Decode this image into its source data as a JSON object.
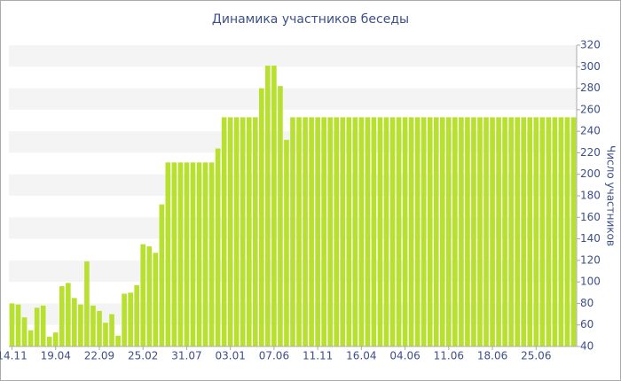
{
  "chart_data": {
    "type": "bar",
    "title": "Динамика участников беседы",
    "y_label": "Число участников",
    "categories": [
      "14.11",
      null,
      null,
      null,
      null,
      null,
      null,
      "19.04",
      null,
      null,
      null,
      null,
      null,
      null,
      "22.09",
      null,
      null,
      null,
      null,
      null,
      null,
      "25.02",
      null,
      null,
      null,
      null,
      null,
      null,
      "31.07",
      null,
      null,
      null,
      null,
      null,
      null,
      "03.01",
      null,
      null,
      null,
      null,
      null,
      null,
      "07.06",
      null,
      null,
      null,
      null,
      null,
      null,
      "11.11",
      null,
      null,
      null,
      null,
      null,
      null,
      "16.04",
      null,
      null,
      null,
      null,
      null,
      null,
      "04.06",
      null,
      null,
      null,
      null,
      null,
      null,
      "11.06",
      null,
      null,
      null,
      null,
      null,
      null,
      "18.06",
      null,
      null,
      null,
      null,
      null,
      null,
      "25.06",
      null,
      null,
      null,
      null,
      null,
      null
    ],
    "values": [
      80,
      79,
      67,
      55,
      76,
      78,
      49,
      53,
      96,
      99,
      85,
      79,
      119,
      78,
      73,
      62,
      70,
      50,
      89,
      90,
      97,
      135,
      133,
      127,
      172,
      211,
      211,
      211,
      211,
      211,
      211,
      211,
      211,
      224,
      253,
      253,
      253,
      253,
      253,
      253,
      280,
      301,
      301,
      282,
      232,
      253,
      253,
      253,
      253,
      253,
      253,
      253,
      253,
      253,
      253,
      253,
      253,
      253,
      253,
      253,
      253,
      253,
      253,
      253,
      253,
      253,
      253,
      253,
      253,
      253,
      253,
      253,
      253,
      253,
      253,
      253,
      253,
      253,
      253,
      253,
      253,
      253,
      253,
      253,
      253,
      253,
      253,
      253,
      253,
      253,
      253
    ],
    "color": "#b8e02e",
    "ylim": [
      40,
      320
    ],
    "yticks": [
      40,
      60,
      80,
      100,
      120,
      140,
      160,
      180,
      200,
      220,
      240,
      260,
      280,
      300,
      320
    ],
    "grid": true
  }
}
